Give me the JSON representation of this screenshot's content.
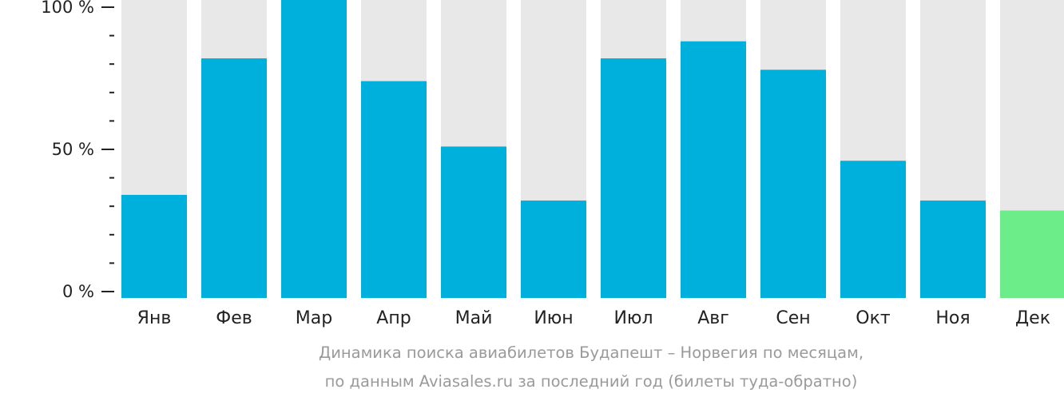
{
  "chart_data": {
    "type": "bar",
    "categories": [
      "Янв",
      "Фев",
      "Мар",
      "Апр",
      "Май",
      "Июн",
      "Июл",
      "Авг",
      "Сен",
      "Окт",
      "Ноя",
      "Дек"
    ],
    "values": [
      34,
      82,
      104,
      74,
      51,
      32,
      82,
      88,
      78,
      46,
      32,
      28.5
    ],
    "ylim": [
      0,
      100
    ],
    "y_ticks": [
      "0 %",
      "50 %",
      "100 %"
    ],
    "y_tick_values": [
      0,
      50,
      100
    ],
    "y_minor_step": 10,
    "grid": false,
    "legend": "none",
    "highlight_index": 11
  },
  "colors": {
    "bar": "#00b0dc",
    "bar_highlight": "#6ded8a",
    "bar_background": "#e8e8e8",
    "axis": "#222222",
    "caption": "#9a9a9a"
  },
  "caption": {
    "line1": "Динамика поиска авиабилетов Будапешт – Норвегия по месяцам,",
    "line2": "по данным Aviasales.ru за последний год (билеты туда-обратно)"
  }
}
